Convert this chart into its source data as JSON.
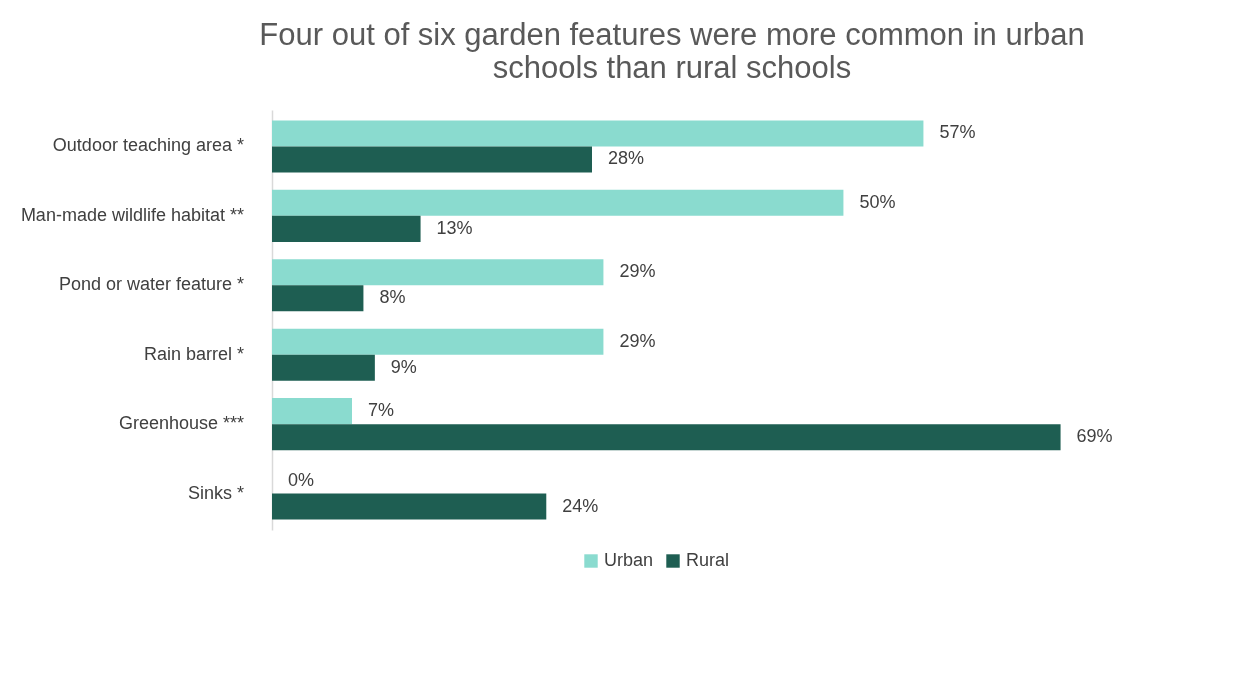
{
  "chart_data": {
    "type": "bar",
    "orientation": "horizontal",
    "title": "Four out of six garden features were more common in urban\nschools than rural schools",
    "categories": [
      "Outdoor teaching area *",
      "Man-made wildlife habitat **",
      "Pond or water feature  *",
      "Rain barrel  *",
      "Greenhouse  ***",
      "Sinks  *"
    ],
    "series": [
      {
        "name": "Urban",
        "color": "#8adbcf",
        "values": [
          57,
          50,
          29,
          29,
          7,
          0
        ],
        "value_labels": [
          "57%",
          "50%",
          "29%",
          "29%",
          "7%",
          "0%"
        ]
      },
      {
        "name": "Rural",
        "color": "#1e5e52",
        "values": [
          28,
          13,
          8,
          9,
          69,
          24
        ],
        "value_labels": [
          "28%",
          "13%",
          "8%",
          "9%",
          "69%",
          "24%"
        ]
      }
    ],
    "legend": "bottom"
  }
}
